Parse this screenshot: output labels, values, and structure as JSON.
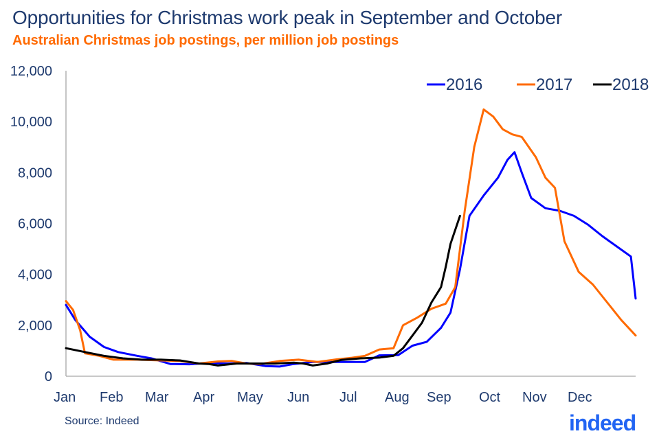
{
  "header": {
    "title": "Opportunities for Christmas work peak in September and October",
    "subtitle": "Australian Christmas job postings, per million job postings"
  },
  "footer": {
    "source": "Source: Indeed",
    "logo": "indeed"
  },
  "colors": {
    "2016": "#0000ff",
    "2017": "#ff6a00",
    "2018": "#000000",
    "text": "#1e3a6e",
    "logo": "#2164f3"
  },
  "chart_data": {
    "type": "line",
    "title": "Opportunities for Christmas work peak in September and October",
    "subtitle": "Australian Christmas job postings, per million job postings",
    "xlabel": "",
    "ylabel": "",
    "ylim": [
      0,
      12000
    ],
    "xlim": [
      0,
      12
    ],
    "yticks": [
      0,
      2000,
      4000,
      6000,
      8000,
      10000,
      12000
    ],
    "ytick_labels": [
      "0",
      "2,000",
      "4,000",
      "6,000",
      "8,000",
      "10,000",
      "12,000"
    ],
    "categories": [
      "Jan",
      "Feb",
      "Mar",
      "Apr",
      "May",
      "Jun",
      "Jul",
      "Aug",
      "Sep",
      "Oct",
      "Nov",
      "Dec"
    ],
    "grid": false,
    "legend_position": "top-right",
    "series": [
      {
        "name": "2016",
        "color": "#0000ff",
        "points": [
          [
            0,
            2800
          ],
          [
            0.2,
            2200
          ],
          [
            0.5,
            1550
          ],
          [
            0.8,
            1150
          ],
          [
            1.1,
            950
          ],
          [
            1.5,
            800
          ],
          [
            1.8,
            700
          ],
          [
            2.2,
            480
          ],
          [
            2.6,
            470
          ],
          [
            3.0,
            520
          ],
          [
            3.4,
            500
          ],
          [
            3.8,
            520
          ],
          [
            4.2,
            400
          ],
          [
            4.5,
            380
          ],
          [
            4.8,
            480
          ],
          [
            5.2,
            560
          ],
          [
            5.6,
            560
          ],
          [
            6.0,
            560
          ],
          [
            6.3,
            560
          ],
          [
            6.6,
            820
          ],
          [
            7.0,
            830
          ],
          [
            7.3,
            1200
          ],
          [
            7.6,
            1350
          ],
          [
            7.9,
            1900
          ],
          [
            8.1,
            2500
          ],
          [
            8.3,
            4200
          ],
          [
            8.5,
            6300
          ],
          [
            8.8,
            7100
          ],
          [
            9.1,
            7800
          ],
          [
            9.3,
            8500
          ],
          [
            9.45,
            8800
          ],
          [
            9.6,
            8000
          ],
          [
            9.8,
            7000
          ],
          [
            10.1,
            6600
          ],
          [
            10.4,
            6500
          ],
          [
            10.7,
            6300
          ],
          [
            11.0,
            5950
          ],
          [
            11.3,
            5500
          ],
          [
            11.6,
            5100
          ],
          [
            11.9,
            4700
          ],
          [
            12.1,
            3900
          ],
          [
            12.3,
            3400
          ],
          [
            12.6,
            3100
          ],
          [
            12.0,
            3050
          ]
        ]
      },
      {
        "name": "2017",
        "color": "#ff6a00",
        "points": [
          [
            0,
            2950
          ],
          [
            0.15,
            2600
          ],
          [
            0.3,
            1800
          ],
          [
            0.4,
            900
          ],
          [
            0.7,
            800
          ],
          [
            1.0,
            650
          ],
          [
            1.5,
            650
          ],
          [
            2.0,
            620
          ],
          [
            2.4,
            600
          ],
          [
            2.8,
            500
          ],
          [
            3.2,
            580
          ],
          [
            3.5,
            600
          ],
          [
            3.8,
            500
          ],
          [
            4.1,
            480
          ],
          [
            4.5,
            600
          ],
          [
            4.9,
            650
          ],
          [
            5.3,
            560
          ],
          [
            5.7,
            660
          ],
          [
            6.0,
            720
          ],
          [
            6.3,
            800
          ],
          [
            6.6,
            1050
          ],
          [
            6.9,
            1100
          ],
          [
            7.1,
            2000
          ],
          [
            7.4,
            2300
          ],
          [
            7.7,
            2650
          ],
          [
            8.0,
            2850
          ],
          [
            8.2,
            3500
          ],
          [
            8.4,
            6500
          ],
          [
            8.6,
            9000
          ],
          [
            8.8,
            10480
          ],
          [
            9.0,
            10200
          ],
          [
            9.2,
            9700
          ],
          [
            9.4,
            9500
          ],
          [
            9.6,
            9400
          ],
          [
            9.9,
            8600
          ],
          [
            10.1,
            7800
          ],
          [
            10.3,
            7400
          ],
          [
            10.5,
            5300
          ],
          [
            10.8,
            4100
          ],
          [
            11.1,
            3600
          ],
          [
            11.4,
            2900
          ],
          [
            11.7,
            2200
          ],
          [
            12.0,
            1600
          ],
          [
            12.3,
            1250
          ],
          [
            12.6,
            1100
          ]
        ]
      },
      {
        "name": "2018",
        "color": "#000000",
        "points": [
          [
            0,
            1100
          ],
          [
            0.4,
            950
          ],
          [
            0.8,
            800
          ],
          [
            1.2,
            700
          ],
          [
            1.6,
            650
          ],
          [
            2.0,
            650
          ],
          [
            2.4,
            620
          ],
          [
            2.8,
            500
          ],
          [
            3.0,
            480
          ],
          [
            3.2,
            420
          ],
          [
            3.6,
            500
          ],
          [
            4.0,
            500
          ],
          [
            4.4,
            500
          ],
          [
            4.8,
            530
          ],
          [
            5.0,
            500
          ],
          [
            5.2,
            420
          ],
          [
            5.5,
            500
          ],
          [
            5.8,
            640
          ],
          [
            6.2,
            700
          ],
          [
            6.6,
            730
          ],
          [
            6.9,
            800
          ],
          [
            7.1,
            1100
          ],
          [
            7.3,
            1600
          ],
          [
            7.5,
            2100
          ],
          [
            7.7,
            2900
          ],
          [
            7.9,
            3500
          ],
          [
            8.0,
            4300
          ],
          [
            8.1,
            5200
          ],
          [
            8.3,
            6300
          ]
        ]
      }
    ]
  }
}
